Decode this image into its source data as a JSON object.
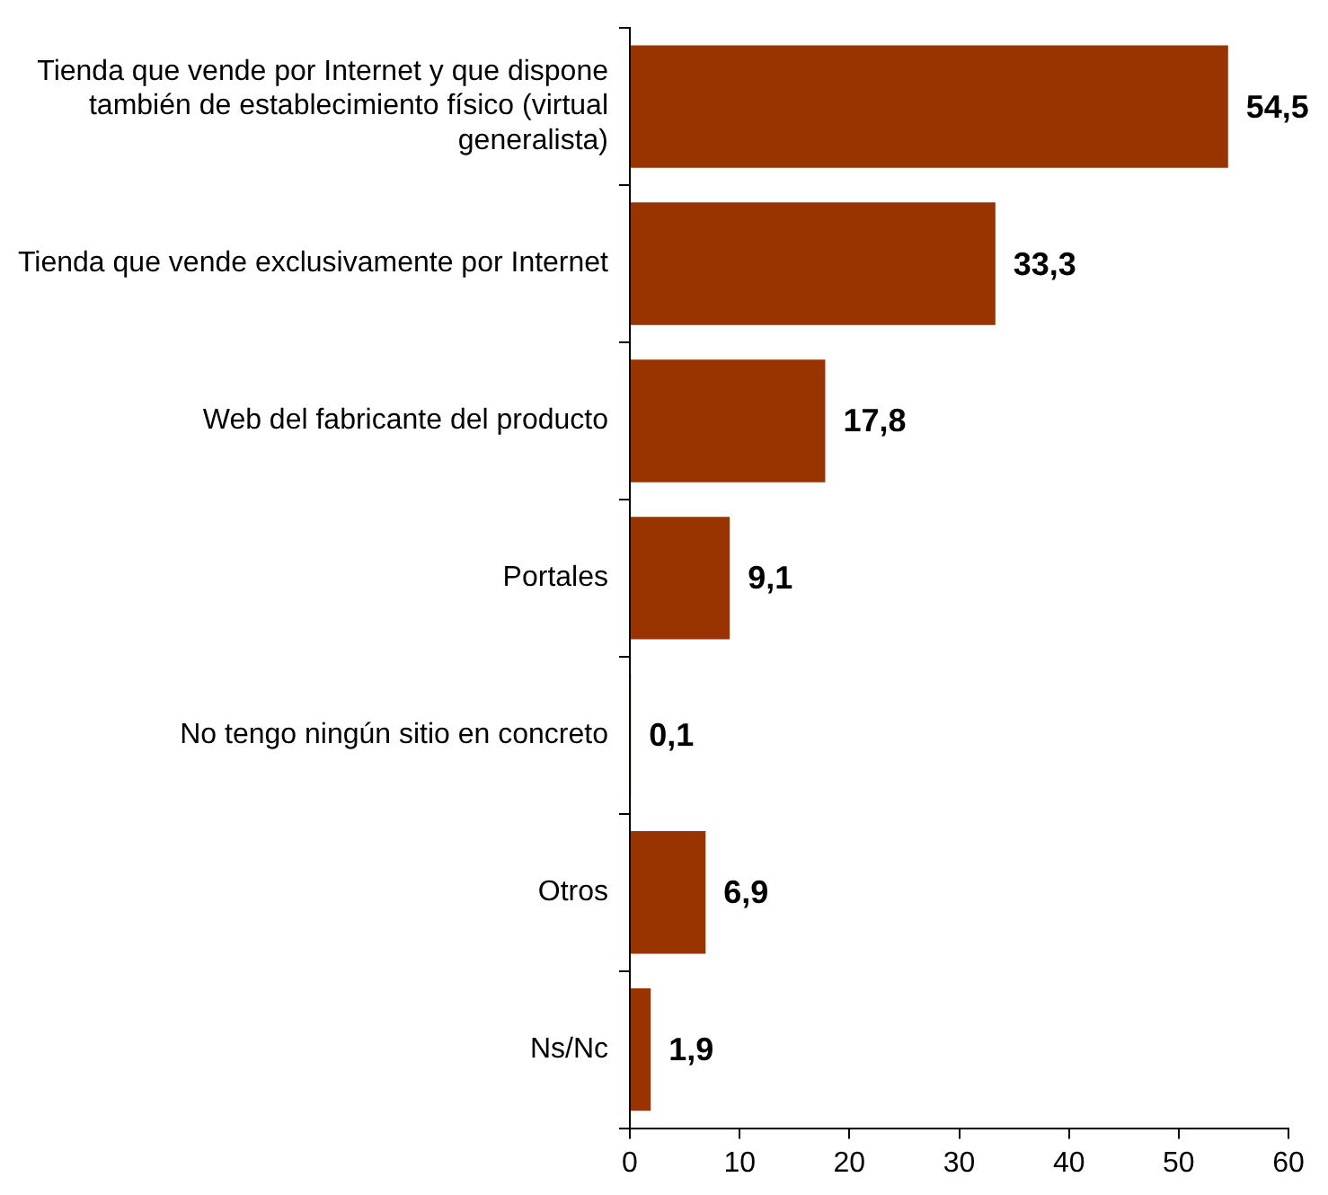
{
  "chart_data": {
    "type": "bar",
    "orientation": "horizontal",
    "categories": [
      "Tienda que vende por Internet y que dispone también de establecimiento físico (virtual generalista)",
      "Tienda que vende exclusivamente por Internet",
      "Web del fabricante del producto",
      "Portales",
      "No tengo ningún sitio en concreto",
      "Otros",
      "Ns/Nc"
    ],
    "values": [
      54.5,
      33.3,
      17.8,
      9.1,
      0.1,
      6.9,
      1.9
    ],
    "value_labels": [
      "54,5",
      "33,3",
      "17,8",
      "9,1",
      "0,1",
      "6,9",
      "1,9"
    ],
    "color": "#993300",
    "xlim": [
      0,
      60
    ],
    "xticks": [
      0,
      10,
      20,
      30,
      40,
      50,
      60
    ],
    "grid": false,
    "legend": false
  }
}
